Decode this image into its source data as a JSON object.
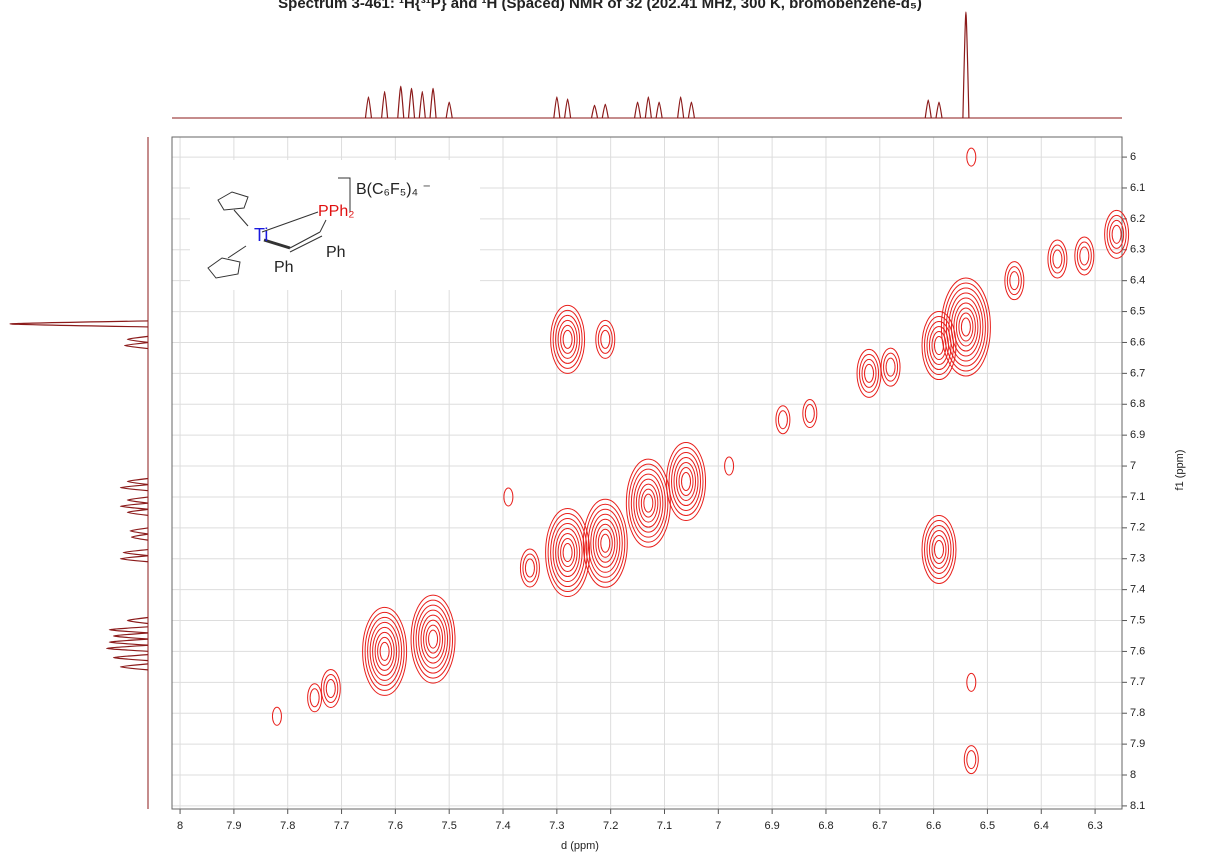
{
  "chart_data": {
    "type": "contour",
    "title": "Spectrum 3-461: ¹H{³¹P} and ¹H (Spaced) NMR of 32 (202.41 MHz, 300 K, bromobenzene-d₅)",
    "x_label": "d (ppm)",
    "y_label": "f1 (ppm)",
    "xlim": [
      8.015,
      6.25
    ],
    "ylim": [
      5.935,
      8.11
    ],
    "xticks": [
      8.0,
      7.9,
      7.8,
      7.7,
      7.6,
      7.5,
      7.4,
      7.3,
      7.2,
      7.1,
      7.0,
      6.9,
      6.8,
      6.7,
      6.6,
      6.5,
      6.4,
      6.3
    ],
    "yticks": [
      6.0,
      6.1,
      6.2,
      6.3,
      6.4,
      6.5,
      6.6,
      6.7,
      6.8,
      6.9,
      7.0,
      7.1,
      7.2,
      7.3,
      7.4,
      7.5,
      7.6,
      7.7,
      7.8,
      7.9,
      8.0,
      8.1
    ],
    "grid": true,
    "color": "#e8201c",
    "trace_color": "#8b1a1a",
    "peaks": [
      {
        "x": 7.82,
        "y": 7.81,
        "levels": 1
      },
      {
        "x": 7.75,
        "y": 7.75,
        "levels": 2
      },
      {
        "x": 7.72,
        "y": 7.72,
        "levels": 3
      },
      {
        "x": 7.62,
        "y": 7.6,
        "levels": 8
      },
      {
        "x": 7.53,
        "y": 7.56,
        "levels": 8
      },
      {
        "x": 7.35,
        "y": 7.33,
        "levels": 3
      },
      {
        "x": 7.28,
        "y": 7.28,
        "levels": 8
      },
      {
        "x": 7.21,
        "y": 7.25,
        "levels": 8
      },
      {
        "x": 7.13,
        "y": 7.12,
        "levels": 8
      },
      {
        "x": 7.06,
        "y": 7.05,
        "levels": 7
      },
      {
        "x": 6.98,
        "y": 7.0,
        "levels": 1
      },
      {
        "x": 6.88,
        "y": 6.85,
        "levels": 2
      },
      {
        "x": 6.83,
        "y": 6.83,
        "levels": 2
      },
      {
        "x": 6.72,
        "y": 6.7,
        "levels": 4
      },
      {
        "x": 6.68,
        "y": 6.68,
        "levels": 3
      },
      {
        "x": 6.59,
        "y": 6.61,
        "levels": 6
      },
      {
        "x": 6.54,
        "y": 6.55,
        "levels": 9
      },
      {
        "x": 6.45,
        "y": 6.4,
        "levels": 3
      },
      {
        "x": 6.37,
        "y": 6.33,
        "levels": 3
      },
      {
        "x": 6.32,
        "y": 6.32,
        "levels": 3
      },
      {
        "x": 6.26,
        "y": 6.25,
        "levels": 4
      },
      {
        "x": 7.28,
        "y": 6.59,
        "levels": 6
      },
      {
        "x": 7.21,
        "y": 6.59,
        "levels": 3
      },
      {
        "x": 6.59,
        "y": 7.27,
        "levels": 6
      },
      {
        "x": 7.39,
        "y": 7.1,
        "levels": 1
      },
      {
        "x": 6.53,
        "y": 6.0,
        "levels": 1
      },
      {
        "x": 6.53,
        "y": 7.7,
        "levels": 1
      },
      {
        "x": 6.53,
        "y": 7.95,
        "levels": 2
      }
    ],
    "projection": [
      {
        "ppm": 7.65,
        "height": 0.2
      },
      {
        "ppm": 7.62,
        "height": 0.25
      },
      {
        "ppm": 7.59,
        "height": 0.3
      },
      {
        "ppm": 7.57,
        "height": 0.28
      },
      {
        "ppm": 7.55,
        "height": 0.25
      },
      {
        "ppm": 7.53,
        "height": 0.28
      },
      {
        "ppm": 7.5,
        "height": 0.15
      },
      {
        "ppm": 7.3,
        "height": 0.2
      },
      {
        "ppm": 7.28,
        "height": 0.18
      },
      {
        "ppm": 7.23,
        "height": 0.12
      },
      {
        "ppm": 7.21,
        "height": 0.13
      },
      {
        "ppm": 7.15,
        "height": 0.15
      },
      {
        "ppm": 7.13,
        "height": 0.2
      },
      {
        "ppm": 7.11,
        "height": 0.15
      },
      {
        "ppm": 7.07,
        "height": 0.2
      },
      {
        "ppm": 7.05,
        "height": 0.15
      },
      {
        "ppm": 6.61,
        "height": 0.17
      },
      {
        "ppm": 6.59,
        "height": 0.15
      },
      {
        "ppm": 6.54,
        "height": 1
      }
    ],
    "structure": {
      "metal": "Ti",
      "phosphine": "PPh₂",
      "phenyl_1": "Ph",
      "phenyl_2": "Ph",
      "anion": "B(C₆F₅)₄ ⁻"
    }
  }
}
